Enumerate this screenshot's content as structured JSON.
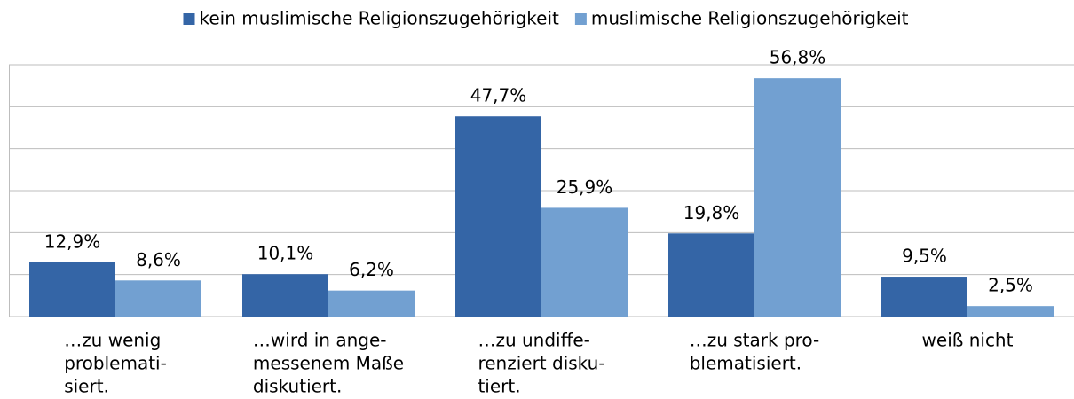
{
  "chart_data": {
    "type": "bar",
    "categories": [
      [
        "…zu wenig",
        "problemati-",
        "siert."
      ],
      [
        "…wird in ange-",
        "messenem Maße",
        "diskutiert."
      ],
      [
        "…zu undiffe-",
        "renziert disku-",
        "tiert."
      ],
      [
        "…zu stark pro-",
        "blematisiert."
      ],
      [
        "weiß nicht"
      ]
    ],
    "series": [
      {
        "name": "kein muslimische Religionszugehörigkeit",
        "color": "#3465a6",
        "values": [
          12.9,
          10.1,
          47.7,
          19.8,
          9.5
        ],
        "value_labels": [
          "12,9%",
          "10,1%",
          "47,7%",
          "19,8%",
          "9,5%"
        ]
      },
      {
        "name": "muslimische Religionszugehörigkeit",
        "color": "#72a0d1",
        "values": [
          8.6,
          6.2,
          25.9,
          56.8,
          2.5
        ],
        "value_labels": [
          "8,6%",
          "6,2%",
          "25,9%",
          "56,8%",
          "2,5%"
        ]
      }
    ],
    "ylim": [
      0,
      60
    ],
    "yticks": [
      0,
      10,
      20,
      30,
      40,
      50,
      60
    ],
    "grid": true,
    "legend": "top"
  }
}
